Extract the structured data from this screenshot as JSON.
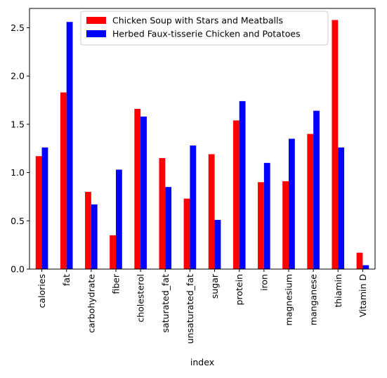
{
  "chart_data": {
    "type": "bar",
    "title": "",
    "xlabel": "index",
    "ylabel": "",
    "ylim": [
      0,
      2.7
    ],
    "yticks": [
      "0.0",
      "0.5",
      "1.0",
      "1.5",
      "2.0",
      "2.5"
    ],
    "grid": false,
    "legend_position": "top-center",
    "categories": [
      "calories",
      "fat",
      "carbohydrate",
      "fiber",
      "cholesterol",
      "saturated_fat",
      "unsaturated_fat",
      "sugar",
      "protein",
      "iron",
      "magnesium",
      "manganese",
      "thiamin",
      "Vitamin D"
    ],
    "series": [
      {
        "name": "Chicken Soup with Stars and Meatballs",
        "color": "#ff0000",
        "values": [
          1.17,
          1.83,
          0.8,
          0.35,
          1.66,
          1.15,
          0.73,
          1.19,
          1.54,
          0.9,
          0.91,
          1.4,
          2.58,
          0.17
        ]
      },
      {
        "name": "Herbed Faux-tisserie Chicken and Potatoes",
        "color": "#0000ff",
        "values": [
          1.26,
          2.56,
          0.67,
          1.03,
          1.58,
          0.85,
          1.28,
          0.51,
          1.74,
          1.1,
          1.35,
          1.64,
          1.26,
          0.04
        ]
      }
    ]
  }
}
